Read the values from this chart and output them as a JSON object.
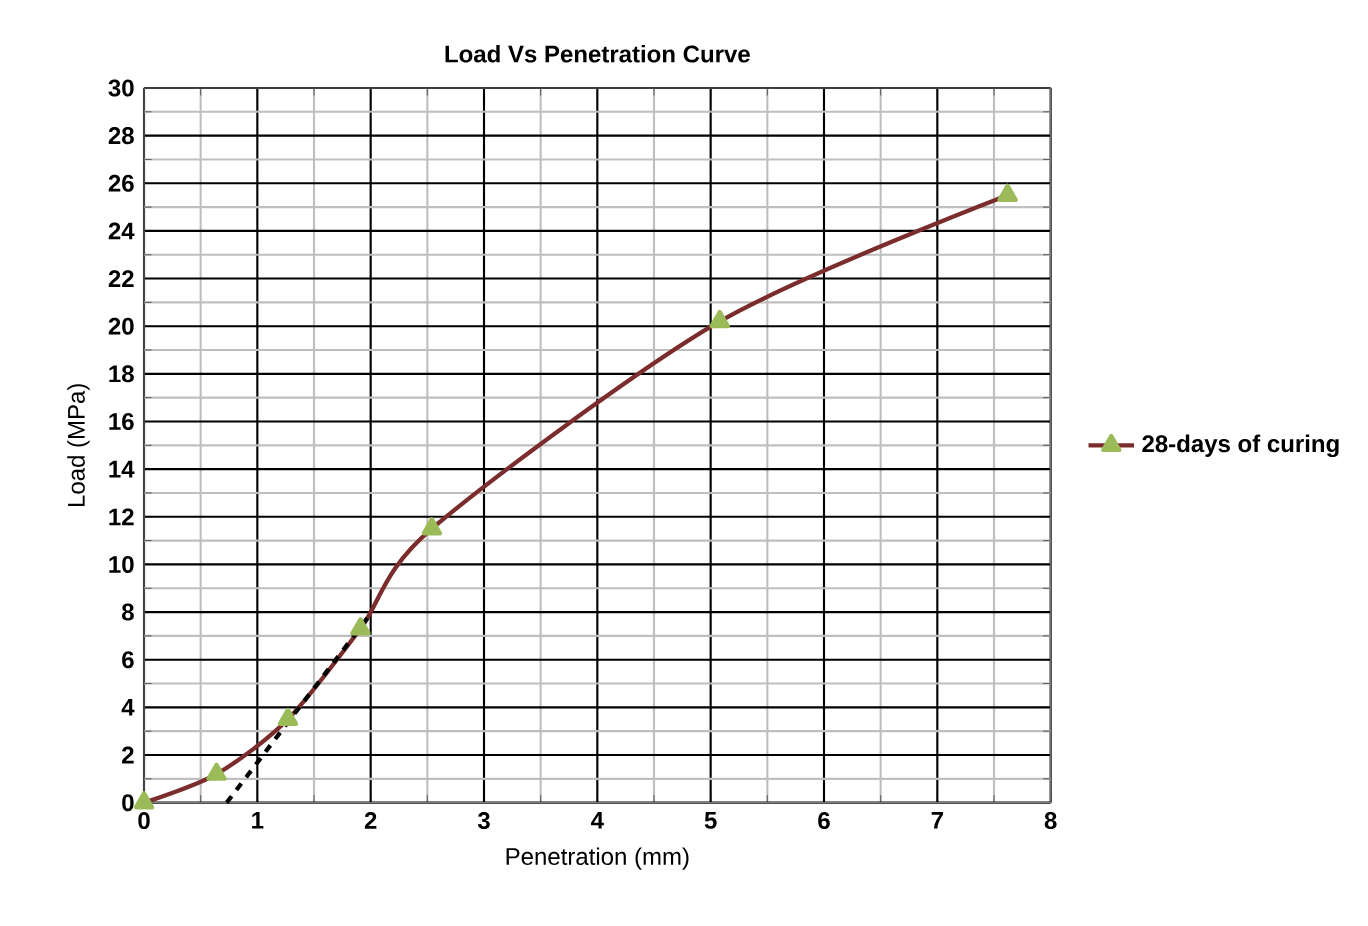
{
  "chart_data": {
    "type": "line",
    "title": "Load Vs Penetration Curve",
    "xlabel": "Penetration (mm)",
    "ylabel": "Load  (MPa)",
    "x": [
      0,
      0.64,
      1.27,
      1.91,
      2.54,
      5.08,
      7.62
    ],
    "series": [
      {
        "name": "28-days of curing",
        "color": "#7b2c2c",
        "values": [
          0,
          1.2,
          3.5,
          7.3,
          11.5,
          20.2,
          25.5
        ],
        "marker": "triangle",
        "line_style": "solid"
      },
      {
        "type": "line",
        "color": "#000000",
        "x": [
          0.73,
          1.98
        ],
        "values": [
          0,
          7.8
        ],
        "marker": "none",
        "line_style": "dashed"
      }
    ],
    "xlim": [
      0,
      8
    ],
    "xticks": [
      0,
      1,
      2,
      3,
      4,
      5,
      6,
      7,
      8
    ],
    "ylim": [
      0,
      30
    ],
    "yticks": [
      0,
      2,
      4,
      6,
      8,
      10,
      12,
      14,
      16,
      18,
      20,
      22,
      24,
      26,
      28,
      30
    ],
    "grid": true,
    "legend": "right"
  }
}
